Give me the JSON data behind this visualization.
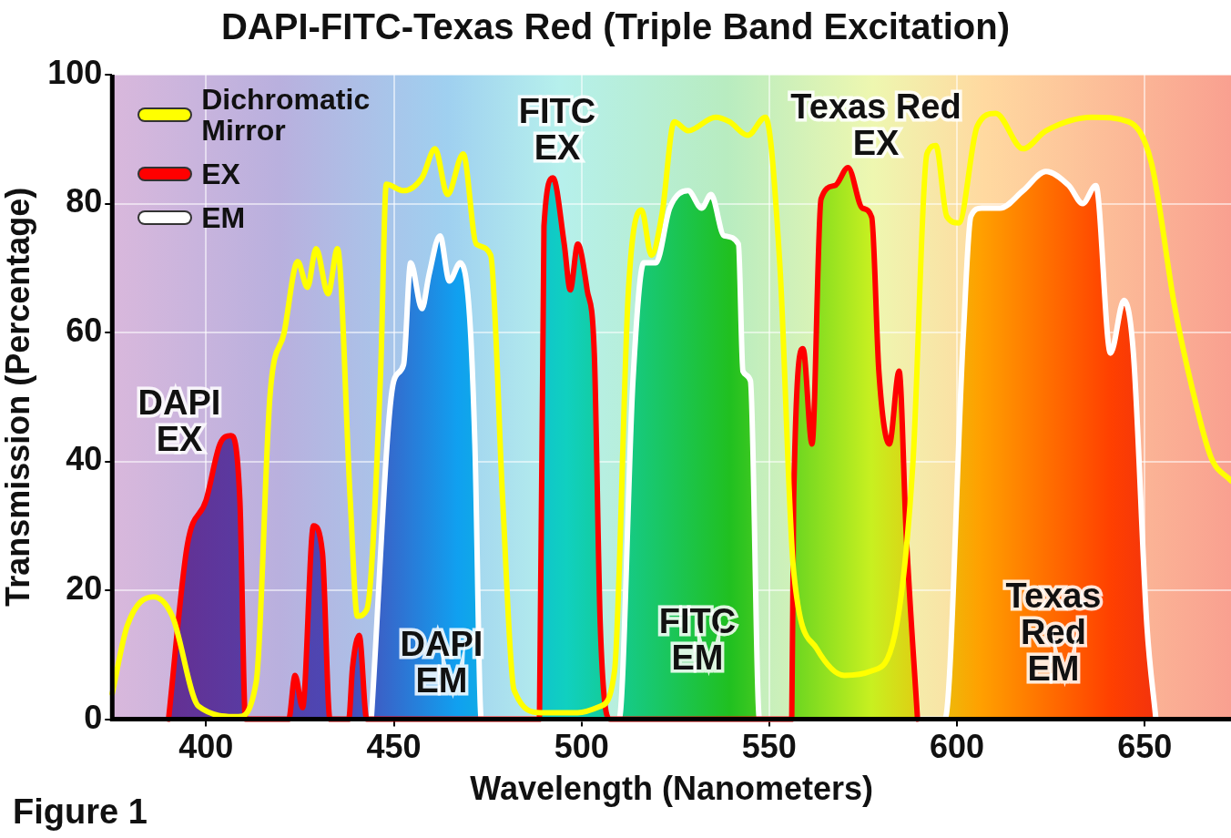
{
  "chart_data": {
    "type": "line",
    "title": "DAPI-FITC-Texas Red (Triple Band Excitation)",
    "xlabel": "Wavelength (Nanometers)",
    "ylabel": "Transmission (Percentage)",
    "xlim": [
      375,
      673
    ],
    "xticks": [
      400,
      450,
      500,
      550,
      600,
      650
    ],
    "ylim": [
      0,
      100
    ],
    "yticks": [
      0,
      20,
      40,
      60,
      80,
      100
    ],
    "grid": true,
    "legend": "top left",
    "marker": "none",
    "line_style": "solid",
    "series": [
      {
        "name": "Dichromatic Mirror",
        "color": "#ffff00",
        "x": [
          375,
          379,
          386,
          391,
          398,
          408.6,
          413.4,
          417,
          420.8,
          424.4,
          427,
          429.3,
          432.5,
          435,
          438.4,
          440.3,
          442.8,
          446.5,
          448,
          452.6,
          457.5,
          461,
          464.3,
          468.5,
          472,
          475.8,
          479,
          482,
          489.2,
          499,
          505,
          508.8,
          512.5,
          516,
          518.6,
          521.5,
          524.7,
          528.4,
          535.7,
          539.4,
          544.3,
          549,
          552.8,
          556.5,
          562.6,
          570,
          577.3,
          583.4,
          588.3,
          592,
          594.4,
          597.3,
          600.5,
          605.4,
          610.3,
          617.6,
          623.7,
          636,
          645.7,
          651.8,
          658,
          662.8,
          667.7,
          673
        ],
        "values": [
          4,
          14.5,
          19,
          16,
          2,
          0.4,
          6,
          50,
          60,
          71,
          67,
          73,
          66,
          73,
          34,
          16,
          17,
          54,
          83,
          82,
          84,
          88.5,
          81.4,
          87.7,
          73.7,
          72,
          34,
          4.6,
          1,
          1,
          2,
          7.5,
          66.6,
          79,
          72,
          78.6,
          92.7,
          91.3,
          93.4,
          92.7,
          90.6,
          93.4,
          70.8,
          23,
          11,
          6.8,
          7.5,
          13,
          40,
          87.7,
          89,
          78,
          77,
          92,
          94,
          88.5,
          91.3,
          93.4,
          92.7,
          86.3,
          64,
          51,
          40.6,
          37
        ]
      },
      {
        "name": "EX",
        "type": "area",
        "color": "#ff0000",
        "x": [
          390,
          395,
          400,
          403.7,
          406.6,
          409,
          410.5,
          422,
          423.7,
          425.7,
          428.6,
          431,
          433,
          438,
          439,
          440.8,
          442.8,
          488.8,
          490,
          492.4,
          495.4,
          497,
          499,
          501.5,
          503.4,
          505,
          507.6,
          556,
          556.5,
          559,
          561.4,
          563.8,
          567.5,
          571,
          574.8,
          577.3,
          579.2,
          582,
          584.6,
          586.5,
          589.5
        ],
        "values": [
          0,
          27,
          34,
          42.7,
          44,
          34,
          0,
          0,
          6.8,
          1.8,
          30,
          25.8,
          0,
          0,
          8,
          13,
          0,
          0,
          76.5,
          84,
          73.7,
          66.6,
          73.7,
          66.6,
          56.8,
          14.5,
          0,
          0,
          34,
          57.5,
          42.7,
          80.7,
          82.8,
          85.6,
          79.3,
          77.9,
          54,
          42.7,
          54,
          28.6,
          0
        ]
      },
      {
        "name": "EM",
        "type": "area",
        "color": "#ffffff",
        "x": [
          444,
          450,
          452.6,
          454.5,
          457.5,
          459.4,
          462.3,
          464.8,
          467.7,
          470.2,
          471.6,
          473.3,
          510,
          513.7,
          516.6,
          519.8,
          523.5,
          528.4,
          532,
          534.5,
          538,
          541.8,
          543,
          545,
          547.4,
          596.8,
          601.7,
          603.7,
          606.6,
          611.5,
          617.6,
          623.7,
          629.8,
          633.5,
          637,
          640.9,
          644.5,
          647,
          650.6,
          653
        ],
        "values": [
          0,
          52.5,
          55,
          70.8,
          63.7,
          69,
          75,
          68,
          70.8,
          62.4,
          42.7,
          0,
          0,
          52.5,
          70.8,
          70.8,
          79.3,
          82,
          79.3,
          81.4,
          75,
          73.7,
          54,
          52.5,
          0,
          0,
          59.6,
          78,
          79.3,
          79.3,
          82,
          85,
          82.8,
          80,
          82.8,
          56.8,
          65,
          56.8,
          14.5,
          0
        ]
      }
    ],
    "annotations": [
      "DAPI\nEX",
      "DAPI\nEM",
      "FITC\nEX",
      "FITC\nEM",
      "Texas Red\nEX",
      "Texas\nRed\nEM",
      "Figure 1"
    ]
  }
}
